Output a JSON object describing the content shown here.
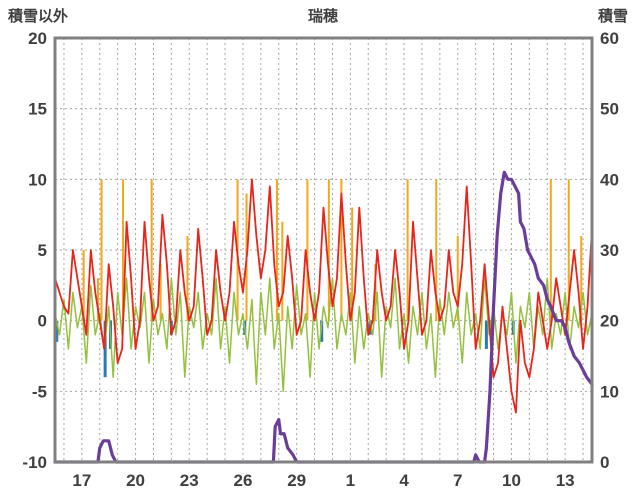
{
  "header": {
    "left_axis_title": "積雪以外",
    "chart_title": "瑞穂",
    "right_axis_title": "積雪"
  },
  "chart_data": {
    "type": "line",
    "title": "瑞穂",
    "style": {
      "background": "#ffffff",
      "frame_color": "#808080",
      "grid_color": "#a6a6a6",
      "text_color": "#3f3f3f"
    },
    "left_axis": {
      "label": "積雪以外",
      "min": -10,
      "max": 20,
      "ticks": [
        20,
        15,
        10,
        5,
        0,
        -5,
        -10
      ]
    },
    "right_axis": {
      "label": "積雪",
      "min": 0,
      "max": 60,
      "ticks": [
        60,
        50,
        40,
        30,
        20,
        10,
        0
      ]
    },
    "x_axis": {
      "min": 15.5,
      "max": 45.5,
      "tick_days": [
        17,
        20,
        23,
        26,
        29,
        32,
        35,
        38,
        41,
        44
      ],
      "tick_labels": [
        "17",
        "20",
        "23",
        "26",
        "29",
        "1",
        "4",
        "7",
        "10",
        "13"
      ],
      "grid_every_day": true
    },
    "x_start": 15.5,
    "x_step": 0.25,
    "series": [
      {
        "name": "green",
        "color": "#94c13d",
        "width": 1.5,
        "axis": "left",
        "values": [
          0.5,
          -1,
          1.5,
          -2,
          2,
          -0.5,
          1,
          -3,
          2.5,
          -1,
          0.5,
          -2,
          1,
          -4,
          2,
          -1,
          3,
          -2,
          1,
          -0.5,
          2,
          -3,
          1.5,
          -1,
          0.5,
          -2,
          3,
          -1,
          2,
          -4,
          1,
          -0.5,
          2,
          -2,
          0.5,
          -1,
          3,
          -2,
          1,
          -3,
          2,
          -1,
          0.5,
          -2,
          1.5,
          -4.5,
          2,
          -1,
          3,
          -2,
          0.5,
          -5,
          1,
          -2,
          2.5,
          -1,
          0.5,
          -4,
          2,
          -2,
          1,
          -0.5,
          3,
          -2,
          0.5,
          -1,
          2,
          -3,
          1,
          -2,
          0.5,
          -1,
          2,
          -4,
          1,
          -0.5,
          3,
          -2,
          0.5,
          -3,
          1,
          -1,
          2,
          -2,
          0.5,
          -4,
          1.5,
          -1,
          2,
          -0.5,
          1,
          -3,
          2,
          -1,
          0.5,
          -2,
          3,
          -1,
          1,
          -2,
          0.5,
          -1,
          2,
          -3,
          1,
          -0.5,
          2,
          -2,
          1,
          -1,
          3,
          -2,
          0.5,
          -1,
          2,
          -2,
          1,
          -0.5,
          2,
          -1,
          0.5
        ]
      },
      {
        "name": "red",
        "color": "#e8241b",
        "width": 1.8,
        "axis": "left",
        "values": [
          3,
          2,
          1,
          0.5,
          5,
          3,
          1,
          -1,
          5,
          2,
          0,
          -2,
          4,
          1,
          -3,
          -2,
          7,
          3,
          -2,
          0,
          7,
          3,
          0,
          1,
          7.5,
          4,
          -1,
          0,
          5,
          2,
          0,
          1,
          6.5,
          3,
          -1,
          0,
          5,
          2,
          0,
          2,
          7,
          4,
          2,
          5,
          10,
          6,
          3,
          5,
          9.5,
          4,
          1,
          2,
          6,
          3,
          -1,
          0,
          5,
          2,
          0,
          2,
          8,
          4,
          1,
          3,
          9,
          4,
          0,
          2,
          8,
          3,
          -1,
          0,
          5,
          2,
          0,
          1,
          5,
          2,
          -2,
          0,
          7,
          3,
          -1,
          0,
          5,
          2,
          0,
          1,
          5,
          2,
          1,
          4,
          9.5,
          4,
          -2,
          0,
          4,
          0,
          -4,
          -3,
          1,
          -2,
          -5,
          -6.5,
          0,
          -3,
          -4,
          -2,
          2,
          0,
          -2,
          0,
          3,
          1,
          -1,
          2,
          5,
          2,
          -2,
          1,
          6.5
        ]
      }
    ],
    "spikes": {
      "name": "orange",
      "color": "#f3a71c",
      "width": 2,
      "axis": "left",
      "baseline": 0,
      "points": [
        [
          17.1,
          5
        ],
        [
          17.9,
          3
        ],
        [
          18.1,
          10
        ],
        [
          19.3,
          10
        ],
        [
          20.9,
          10
        ],
        [
          21.4,
          4
        ],
        [
          22.9,
          6
        ],
        [
          25.7,
          10
        ],
        [
          26.2,
          9
        ],
        [
          27.9,
          10
        ],
        [
          28.2,
          7
        ],
        [
          29.6,
          10
        ],
        [
          30.8,
          10
        ],
        [
          31.5,
          10
        ],
        [
          32.1,
          8
        ],
        [
          33.4,
          4
        ],
        [
          35.2,
          10
        ],
        [
          36.8,
          10
        ],
        [
          38.0,
          6
        ],
        [
          43.2,
          10
        ],
        [
          44.2,
          10
        ],
        [
          44.9,
          6
        ]
      ]
    },
    "bars": {
      "name": "blue",
      "color": "#2a7ab9",
      "width": 3,
      "axis": "left",
      "baseline": 0,
      "points": [
        [
          15.6,
          -1.5
        ],
        [
          18.3,
          -4
        ],
        [
          18.6,
          -2
        ],
        [
          22.0,
          -1
        ],
        [
          26.1,
          -1
        ],
        [
          30.4,
          -1.5
        ],
        [
          33.1,
          -1
        ],
        [
          39.6,
          -2
        ],
        [
          39.8,
          -1
        ],
        [
          41.1,
          -1
        ]
      ]
    },
    "snow_series": {
      "name": "snow_depth",
      "color": "#6a3d9a",
      "width": 3.2,
      "axis": "right",
      "points": [
        [
          15.5,
          0
        ],
        [
          17.9,
          0
        ],
        [
          18.0,
          2
        ],
        [
          18.2,
          3
        ],
        [
          18.5,
          3
        ],
        [
          18.7,
          1
        ],
        [
          18.9,
          0
        ],
        [
          27.7,
          0
        ],
        [
          27.8,
          5
        ],
        [
          28.0,
          6
        ],
        [
          28.1,
          4
        ],
        [
          28.3,
          4
        ],
        [
          28.5,
          2
        ],
        [
          28.8,
          1
        ],
        [
          29.0,
          0
        ],
        [
          38.9,
          0
        ],
        [
          39.0,
          1
        ],
        [
          39.2,
          0
        ],
        [
          39.5,
          0
        ],
        [
          39.6,
          2
        ],
        [
          39.8,
          10
        ],
        [
          40.0,
          22
        ],
        [
          40.2,
          32
        ],
        [
          40.4,
          38
        ],
        [
          40.6,
          41
        ],
        [
          40.8,
          40
        ],
        [
          41.0,
          40
        ],
        [
          41.2,
          39
        ],
        [
          41.4,
          38
        ],
        [
          41.5,
          34
        ],
        [
          41.7,
          33
        ],
        [
          41.9,
          30
        ],
        [
          42.1,
          29
        ],
        [
          42.3,
          28
        ],
        [
          42.5,
          26
        ],
        [
          42.8,
          25
        ],
        [
          43.0,
          23
        ],
        [
          43.2,
          22
        ],
        [
          43.5,
          20
        ],
        [
          43.8,
          20
        ],
        [
          44.0,
          19
        ],
        [
          44.2,
          17
        ],
        [
          44.5,
          15
        ],
        [
          44.8,
          14
        ],
        [
          45.0,
          13
        ],
        [
          45.2,
          12
        ],
        [
          45.5,
          11
        ]
      ]
    }
  }
}
